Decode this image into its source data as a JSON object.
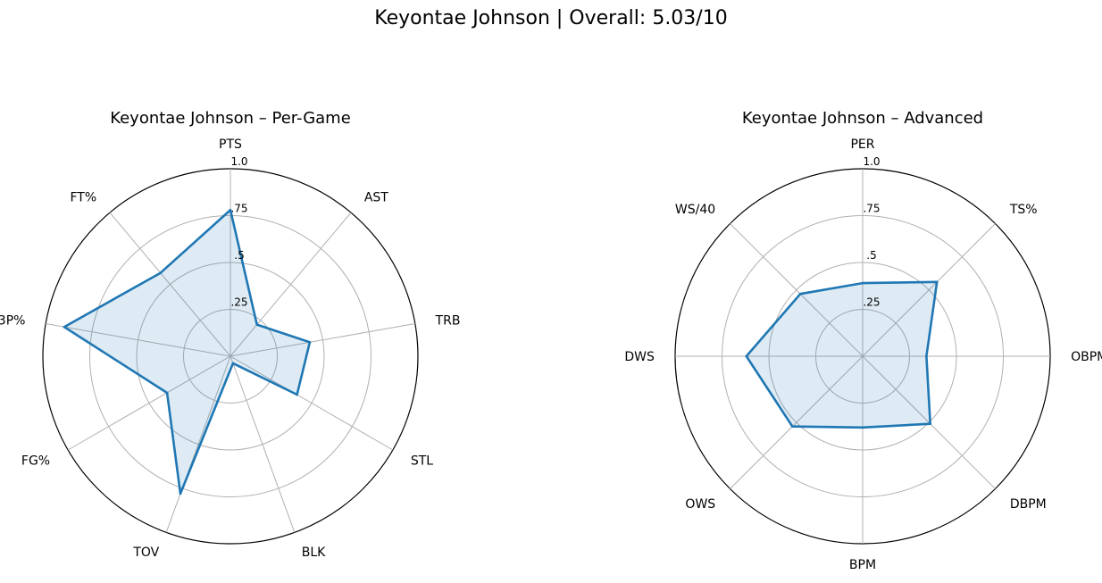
{
  "suptitle": "Keyontae Johnson | Overall: 5.03/10",
  "colors": {
    "line": "#1f77b4",
    "fill": "#1f77b4",
    "grid": "#b0b0b0"
  },
  "chart_data": [
    {
      "type": "radar",
      "title": "Keyontae Johnson – Per-Game",
      "rlim": [
        0,
        1
      ],
      "rticks": [
        0.25,
        0.5,
        0.75,
        1.0
      ],
      "rtick_labels": [
        ".25",
        ".5",
        ".75",
        "1.0"
      ],
      "categories": [
        "PTS",
        "AST",
        "TRB",
        "STL",
        "BLK",
        "TOV",
        "FG%",
        "3P%",
        "FT%"
      ],
      "values": [
        0.78,
        0.22,
        0.43,
        0.41,
        0.04,
        0.78,
        0.39,
        0.9,
        0.58
      ]
    },
    {
      "type": "radar",
      "title": "Keyontae Johnson – Advanced",
      "rlim": [
        0,
        1
      ],
      "rticks": [
        0.25,
        0.5,
        0.75,
        1.0
      ],
      "rtick_labels": [
        ".25",
        ".5",
        ".75",
        "1.0"
      ],
      "categories": [
        "PER",
        "TS%",
        "OBPM",
        "DBPM",
        "BPM",
        "OWS",
        "DWS",
        "WS/40"
      ],
      "values": [
        0.39,
        0.56,
        0.34,
        0.51,
        0.38,
        0.53,
        0.62,
        0.47
      ]
    }
  ]
}
